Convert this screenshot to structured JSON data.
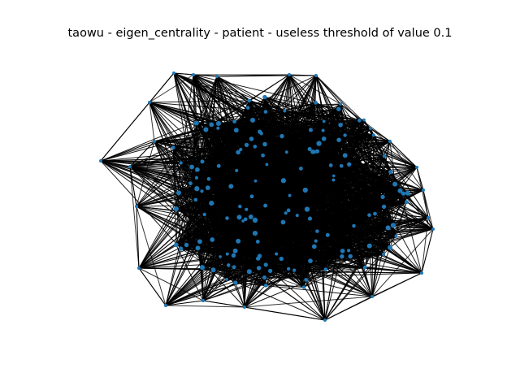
{
  "figure": {
    "title": "taowu - eigen_centrality - patient - useless threshold of value 0.1"
  },
  "colors": {
    "background": "#ffffff",
    "node_fill": "#1f77b4",
    "edge_stroke": "#000000",
    "title_text": "#000000"
  },
  "graph": {
    "type": "network",
    "layout": "spring",
    "node_shape": "circle",
    "edges": "dense, nearly complete"
  }
}
